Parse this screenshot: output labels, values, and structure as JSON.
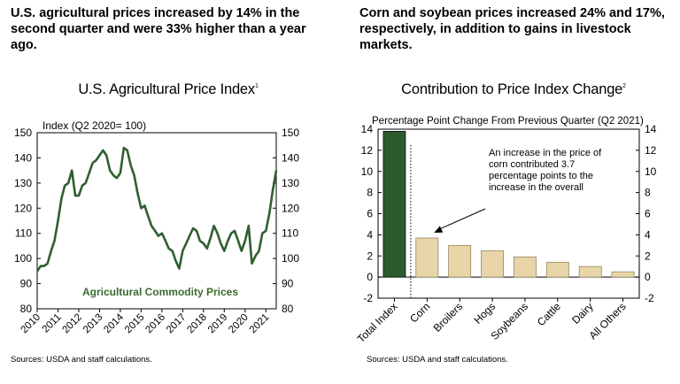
{
  "headlines": {
    "left": "U.S. agricultural prices increased by 14% in the second quarter and were 33% higher than a year ago.",
    "right": "Corn and soybean prices increased 24% and 17%, respectively, in addition to gains in livestock markets."
  },
  "sources": {
    "left": "Sources: USDA and staff calculations.",
    "right": "Sources: USDA and staff calculations."
  },
  "colors": {
    "line": "#2f5f2f",
    "total_bar": "#2d5a2d",
    "bars": "#e8d5a8",
    "series_label": "#3a6b2e"
  },
  "chart_data": [
    {
      "type": "line",
      "title": "U.S. Agricultural Price Index",
      "title_note": "1",
      "ylabel": "Index (Q2 2020= 100)",
      "ylim": [
        80,
        150
      ],
      "yticks": [
        80,
        90,
        100,
        110,
        120,
        130,
        140,
        150
      ],
      "xlim": [
        2010,
        2021.5
      ],
      "xticks": [
        "2010",
        "2011",
        "2012",
        "2013",
        "2014",
        "2015",
        "2016",
        "2017",
        "2018",
        "2019",
        "2020",
        "2021"
      ],
      "grid": false,
      "series": [
        {
          "name": "Agricultural Commodity Prices",
          "x": [
            2010.0,
            2010.17,
            2010.33,
            2010.5,
            2010.67,
            2010.83,
            2011.0,
            2011.17,
            2011.33,
            2011.5,
            2011.67,
            2011.83,
            2012.0,
            2012.17,
            2012.33,
            2012.5,
            2012.67,
            2012.83,
            2013.0,
            2013.17,
            2013.33,
            2013.5,
            2013.67,
            2013.83,
            2014.0,
            2014.17,
            2014.33,
            2014.5,
            2014.67,
            2014.83,
            2015.0,
            2015.17,
            2015.33,
            2015.5,
            2015.67,
            2015.83,
            2016.0,
            2016.17,
            2016.33,
            2016.5,
            2016.67,
            2016.83,
            2017.0,
            2017.17,
            2017.33,
            2017.5,
            2017.67,
            2017.83,
            2018.0,
            2018.17,
            2018.33,
            2018.5,
            2018.67,
            2018.83,
            2019.0,
            2019.17,
            2019.33,
            2019.5,
            2019.67,
            2019.83,
            2020.0,
            2020.17,
            2020.33,
            2020.5,
            2020.67,
            2020.83,
            2021.0,
            2021.17,
            2021.33,
            2021.5
          ],
          "y": [
            95,
            97,
            97,
            98,
            103,
            107,
            115,
            124,
            129,
            130,
            135,
            125,
            125,
            129,
            130,
            134,
            138,
            139,
            141,
            143,
            141,
            135,
            133,
            132,
            134,
            144,
            143,
            137,
            133,
            126,
            120,
            121,
            117,
            113,
            111,
            109,
            110,
            107,
            104,
            103,
            99,
            96,
            103,
            106,
            109,
            112,
            111,
            107,
            106,
            104,
            108,
            113,
            110,
            106,
            103,
            107,
            110,
            111,
            107,
            103,
            107,
            113,
            98,
            101,
            103,
            110,
            111,
            118,
            127,
            135
          ]
        }
      ],
      "series_label_display": "Agricultural Commodity Prices"
    },
    {
      "type": "bar",
      "title": "Contribution to Price Index Change",
      "title_note": "2",
      "subtitle": "Percentage Point Change From Previous Quarter (Q2 2021)",
      "categories": [
        "Total Index",
        "Corn",
        "Broilers",
        "Hogs",
        "Soybeans",
        "Cattle",
        "Dairy",
        "All Others"
      ],
      "values": [
        13.8,
        3.7,
        3.0,
        2.5,
        1.9,
        1.4,
        1.0,
        0.5
      ],
      "ylim": [
        -2,
        14
      ],
      "yticks": [
        -2,
        0,
        2,
        4,
        6,
        8,
        10,
        12,
        14
      ],
      "grid": false,
      "annotation": "An increase in the price of corn contributed 3.7 percentage points to the increase in the overall"
    }
  ]
}
